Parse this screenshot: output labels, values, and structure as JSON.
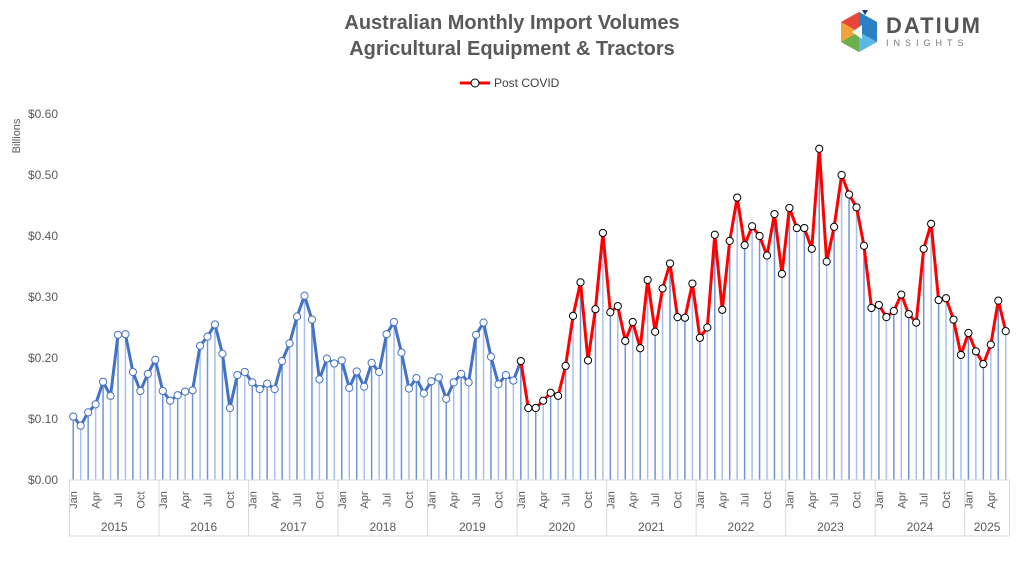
{
  "chart_data": {
    "type": "line",
    "title": [
      "Australian Monthly Import Volumes",
      "Agricultural Equipment & Tractors"
    ],
    "ylabel": "Billions",
    "ylim": [
      0,
      0.6
    ],
    "yticks": [
      "$0.00",
      "$0.10",
      "$0.20",
      "$0.30",
      "$0.40",
      "$0.50",
      "$0.60"
    ],
    "ytick_values": [
      0,
      0.1,
      0.2,
      0.3,
      0.4,
      0.5,
      0.6
    ],
    "grid": false,
    "legend": {
      "position": "top",
      "entries": [
        "Post COVID"
      ]
    },
    "month_tick_labels": [
      "Jan",
      "Apr",
      "Jul",
      "Oct"
    ],
    "years": [
      "2015",
      "2016",
      "2017",
      "2018",
      "2019",
      "2020",
      "2021",
      "2022",
      "2023",
      "2024",
      "2025"
    ],
    "start": "2015-01",
    "end": "2025-06",
    "colors": {
      "pre_covid": "#4472c4",
      "post_covid": "#ff0000",
      "stems": "#a9c1e8"
    },
    "post_covid_start": "2020-01",
    "values": [
      0.104,
      0.089,
      0.111,
      0.124,
      0.161,
      0.138,
      0.238,
      0.239,
      0.177,
      0.146,
      0.174,
      0.197,
      0.146,
      0.13,
      0.139,
      0.145,
      0.147,
      0.22,
      0.235,
      0.255,
      0.207,
      0.118,
      0.172,
      0.177,
      0.16,
      0.149,
      0.158,
      0.149,
      0.195,
      0.224,
      0.268,
      0.302,
      0.263,
      0.165,
      0.199,
      0.191,
      0.196,
      0.151,
      0.178,
      0.153,
      0.192,
      0.177,
      0.239,
      0.259,
      0.209,
      0.15,
      0.167,
      0.142,
      0.162,
      0.168,
      0.133,
      0.16,
      0.174,
      0.16,
      0.238,
      0.258,
      0.202,
      0.157,
      0.172,
      0.163,
      0.195,
      0.118,
      0.118,
      0.13,
      0.143,
      0.138,
      0.187,
      0.269,
      0.324,
      0.196,
      0.28,
      0.405,
      0.275,
      0.285,
      0.228,
      0.259,
      0.216,
      0.328,
      0.243,
      0.314,
      0.355,
      0.267,
      0.266,
      0.322,
      0.233,
      0.25,
      0.402,
      0.279,
      0.392,
      0.463,
      0.385,
      0.416,
      0.4,
      0.368,
      0.436,
      0.338,
      0.446,
      0.413,
      0.413,
      0.379,
      0.543,
      0.358,
      0.415,
      0.5,
      0.468,
      0.447,
      0.384,
      0.282,
      0.287,
      0.267,
      0.277,
      0.304,
      0.272,
      0.258,
      0.379,
      0.42,
      0.295,
      0.298,
      0.263,
      0.205,
      0.241,
      0.211,
      0.19,
      0.222,
      0.294,
      0.244
    ]
  },
  "logo": {
    "name": "DATIUM",
    "sub": "INSIGHTS"
  }
}
